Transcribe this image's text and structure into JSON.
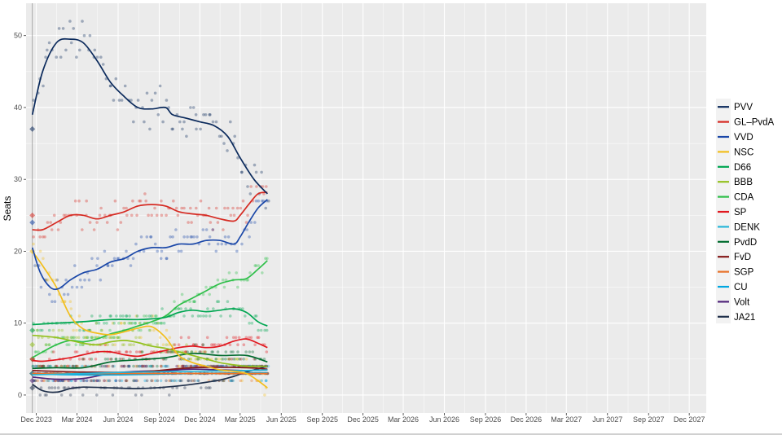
{
  "chart_data": {
    "type": "line",
    "title": "",
    "xlabel": "",
    "ylabel": "Seats",
    "ylim": [
      -2.5,
      54.5
    ],
    "xlim": [
      "2023-11-08",
      "2028-01-08"
    ],
    "y_ticks": [
      0,
      10,
      20,
      30,
      40,
      50
    ],
    "x_ticks": [
      {
        "date": "2023-12-01",
        "label": "Dec 2023"
      },
      {
        "date": "2024-03-01",
        "label": "Mar 2024"
      },
      {
        "date": "2024-06-01",
        "label": "Jun 2024"
      },
      {
        "date": "2024-09-01",
        "label": "Sep 2024"
      },
      {
        "date": "2024-12-01",
        "label": "Dec 2024"
      },
      {
        "date": "2025-03-01",
        "label": "Mar 2025"
      },
      {
        "date": "2025-06-01",
        "label": "Jun 2025"
      },
      {
        "date": "2025-09-01",
        "label": "Sep 2025"
      },
      {
        "date": "2025-12-01",
        "label": "Dec 2025"
      },
      {
        "date": "2026-03-01",
        "label": "Mar 2026"
      },
      {
        "date": "2026-06-01",
        "label": "Jun 2026"
      },
      {
        "date": "2026-09-01",
        "label": "Sep 2026"
      },
      {
        "date": "2026-12-01",
        "label": "Dec 2026"
      },
      {
        "date": "2027-03-01",
        "label": "Mar 2027"
      },
      {
        "date": "2027-06-01",
        "label": "Jun 2027"
      },
      {
        "date": "2027-09-01",
        "label": "Sep 2027"
      },
      {
        "date": "2027-12-01",
        "label": "Dec 2027"
      }
    ],
    "election_date": "2023-11-22",
    "grid": true,
    "background": "#ebebeb",
    "legend_position": "right",
    "series": [
      {
        "name": "PVV",
        "color": "#0b2a5c",
        "election": 37,
        "trend": [
          [
            "2023-11-22",
            39
          ],
          [
            "2023-12-15",
            45
          ],
          [
            "2024-01-15",
            49
          ],
          [
            "2024-02-15",
            49.5
          ],
          [
            "2024-03-15",
            49
          ],
          [
            "2024-04-15",
            46.5
          ],
          [
            "2024-05-15",
            43.5
          ],
          [
            "2024-06-15",
            41.5
          ],
          [
            "2024-07-15",
            40
          ],
          [
            "2024-08-15",
            39.8
          ],
          [
            "2024-09-15",
            40
          ],
          [
            "2024-10-01",
            39
          ],
          [
            "2024-11-01",
            38.5
          ],
          [
            "2024-12-01",
            38
          ],
          [
            "2025-01-01",
            37.5
          ],
          [
            "2025-02-01",
            36
          ],
          [
            "2025-03-01",
            33
          ],
          [
            "2025-04-01",
            30
          ],
          [
            "2025-05-01",
            28
          ]
        ]
      },
      {
        "name": "GL–PvdA",
        "color": "#d62b23",
        "election": 25,
        "trend": [
          [
            "2023-11-22",
            23
          ],
          [
            "2023-12-15",
            23
          ],
          [
            "2024-01-15",
            24
          ],
          [
            "2024-02-15",
            25
          ],
          [
            "2024-03-15",
            25
          ],
          [
            "2024-04-15",
            24.5
          ],
          [
            "2024-05-15",
            25
          ],
          [
            "2024-06-15",
            25.5
          ],
          [
            "2024-07-15",
            26.3
          ],
          [
            "2024-08-15",
            26.5
          ],
          [
            "2024-09-15",
            26.3
          ],
          [
            "2024-10-15",
            25.5
          ],
          [
            "2024-11-15",
            25.2
          ],
          [
            "2024-12-15",
            25
          ],
          [
            "2025-01-15",
            24.5
          ],
          [
            "2025-02-15",
            24.2
          ],
          [
            "2025-03-01",
            25
          ],
          [
            "2025-03-20",
            26.5
          ],
          [
            "2025-04-10",
            28
          ],
          [
            "2025-05-01",
            28.2
          ]
        ]
      },
      {
        "name": "VVD",
        "color": "#1a47a8",
        "election": 24,
        "trend": [
          [
            "2023-11-22",
            20.5
          ],
          [
            "2023-12-10",
            17
          ],
          [
            "2024-01-01",
            15
          ],
          [
            "2024-01-20",
            14.8
          ],
          [
            "2024-02-15",
            16
          ],
          [
            "2024-03-15",
            17
          ],
          [
            "2024-04-15",
            17.5
          ],
          [
            "2024-05-15",
            18.5
          ],
          [
            "2024-06-15",
            19
          ],
          [
            "2024-07-15",
            20
          ],
          [
            "2024-08-15",
            20.5
          ],
          [
            "2024-09-15",
            20.5
          ],
          [
            "2024-10-15",
            21
          ],
          [
            "2024-11-15",
            21
          ],
          [
            "2024-12-15",
            21.5
          ],
          [
            "2025-01-15",
            21.5
          ],
          [
            "2025-02-15",
            21
          ],
          [
            "2025-03-01",
            22
          ],
          [
            "2025-03-20",
            24
          ],
          [
            "2025-04-10",
            26
          ],
          [
            "2025-05-01",
            27.2
          ]
        ]
      },
      {
        "name": "NSC",
        "color": "#f2be1c",
        "election": 20,
        "trend": [
          [
            "2023-11-22",
            20
          ],
          [
            "2023-12-15",
            18
          ],
          [
            "2024-01-15",
            15
          ],
          [
            "2024-02-15",
            11
          ],
          [
            "2024-03-15",
            9.2
          ],
          [
            "2024-04-15",
            8.6
          ],
          [
            "2024-05-15",
            8.4
          ],
          [
            "2024-06-15",
            8.8
          ],
          [
            "2024-07-15",
            9.3
          ],
          [
            "2024-08-15",
            9.5
          ],
          [
            "2024-09-15",
            8
          ],
          [
            "2024-10-15",
            5.5
          ],
          [
            "2024-11-15",
            4.5
          ],
          [
            "2024-12-15",
            4
          ],
          [
            "2025-01-15",
            3.5
          ],
          [
            "2025-02-15",
            3.3
          ],
          [
            "2025-03-15",
            3
          ],
          [
            "2025-04-10",
            2
          ],
          [
            "2025-05-01",
            1
          ]
        ]
      },
      {
        "name": "D66",
        "color": "#00a651",
        "election": 9,
        "trend": [
          [
            "2023-11-22",
            9.8
          ],
          [
            "2024-01-15",
            10
          ],
          [
            "2024-03-15",
            10.2
          ],
          [
            "2024-05-15",
            10.5
          ],
          [
            "2024-07-15",
            10.5
          ],
          [
            "2024-08-15",
            10.6
          ],
          [
            "2024-09-15",
            10.8
          ],
          [
            "2024-10-15",
            11.5
          ],
          [
            "2024-11-15",
            11.8
          ],
          [
            "2024-12-15",
            11.6
          ],
          [
            "2025-01-15",
            11.8
          ],
          [
            "2025-02-15",
            12
          ],
          [
            "2025-03-15",
            11.5
          ],
          [
            "2025-04-10",
            10.2
          ],
          [
            "2025-05-01",
            9.6
          ]
        ]
      },
      {
        "name": "BBB",
        "color": "#94c11f",
        "election": 7,
        "trend": [
          [
            "2023-11-22",
            8.3
          ],
          [
            "2023-12-15",
            8.2
          ],
          [
            "2024-01-15",
            8
          ],
          [
            "2024-02-15",
            7.6
          ],
          [
            "2024-03-15",
            7.2
          ],
          [
            "2024-04-15",
            7
          ],
          [
            "2024-05-15",
            7.4
          ],
          [
            "2024-06-15",
            7.6
          ],
          [
            "2024-07-15",
            7.3
          ],
          [
            "2024-08-15",
            6.8
          ],
          [
            "2024-09-15",
            6.5
          ],
          [
            "2024-10-15",
            6
          ],
          [
            "2024-11-15",
            5.5
          ],
          [
            "2024-12-15",
            5
          ],
          [
            "2025-01-15",
            4.5
          ],
          [
            "2025-02-15",
            4.2
          ],
          [
            "2025-03-15",
            4
          ],
          [
            "2025-04-10",
            4
          ],
          [
            "2025-05-01",
            4
          ]
        ]
      },
      {
        "name": "CDA",
        "color": "#2fbf4a",
        "election": 5,
        "trend": [
          [
            "2023-11-22",
            5.2
          ],
          [
            "2023-12-15",
            6
          ],
          [
            "2024-01-15",
            7
          ],
          [
            "2024-02-15",
            7.6
          ],
          [
            "2024-03-15",
            7.4
          ],
          [
            "2024-04-15",
            7.8
          ],
          [
            "2024-05-15",
            8.5
          ],
          [
            "2024-06-15",
            9
          ],
          [
            "2024-07-15",
            9.6
          ],
          [
            "2024-08-15",
            10.2
          ],
          [
            "2024-09-15",
            11
          ],
          [
            "2024-10-15",
            12.5
          ],
          [
            "2024-11-15",
            13.5
          ],
          [
            "2024-12-15",
            14.5
          ],
          [
            "2025-01-15",
            15.5
          ],
          [
            "2025-02-15",
            16
          ],
          [
            "2025-03-15",
            16.2
          ],
          [
            "2025-04-10",
            17.5
          ],
          [
            "2025-05-01",
            18.7
          ]
        ]
      },
      {
        "name": "SP",
        "color": "#e1171e",
        "election": 5,
        "trend": [
          [
            "2023-11-22",
            4.8
          ],
          [
            "2023-12-15",
            4.7
          ],
          [
            "2024-01-15",
            4.9
          ],
          [
            "2024-02-15",
            5.2
          ],
          [
            "2024-03-15",
            5.6
          ],
          [
            "2024-04-15",
            6
          ],
          [
            "2024-05-15",
            6
          ],
          [
            "2024-06-15",
            5.6
          ],
          [
            "2024-07-15",
            5.4
          ],
          [
            "2024-08-15",
            5.8
          ],
          [
            "2024-09-15",
            6.2
          ],
          [
            "2024-10-15",
            6.6
          ],
          [
            "2024-11-15",
            6.8
          ],
          [
            "2024-12-15",
            6.6
          ],
          [
            "2025-01-15",
            6.8
          ],
          [
            "2025-02-15",
            7.5
          ],
          [
            "2025-03-15",
            7.8
          ],
          [
            "2025-04-10",
            7.2
          ],
          [
            "2025-05-01",
            6.6
          ]
        ]
      },
      {
        "name": "DENK",
        "color": "#27b6d8",
        "election": 3,
        "trend": [
          [
            "2023-11-22",
            2.8
          ],
          [
            "2024-03-15",
            3
          ],
          [
            "2024-07-15",
            3.2
          ],
          [
            "2024-11-15",
            3.3
          ],
          [
            "2025-03-15",
            3.4
          ],
          [
            "2025-05-01",
            3.5
          ]
        ]
      },
      {
        "name": "PvdD",
        "color": "#006b2e",
        "election": 3,
        "trend": [
          [
            "2023-11-22",
            3.7
          ],
          [
            "2024-01-15",
            3.8
          ],
          [
            "2024-03-15",
            3.8
          ],
          [
            "2024-05-15",
            4.6
          ],
          [
            "2024-07-15",
            4.9
          ],
          [
            "2024-09-15",
            5.2
          ],
          [
            "2024-11-15",
            5.8
          ],
          [
            "2025-01-15",
            5.5
          ],
          [
            "2025-03-15",
            5.5
          ],
          [
            "2025-05-01",
            4.6
          ]
        ]
      },
      {
        "name": "FvD",
        "color": "#841818",
        "election": 3,
        "trend": [
          [
            "2023-11-22",
            3.4
          ],
          [
            "2024-03-15",
            3.2
          ],
          [
            "2024-07-15",
            3.2
          ],
          [
            "2024-11-15",
            3.8
          ],
          [
            "2025-03-15",
            3.8
          ],
          [
            "2025-05-01",
            3.6
          ]
        ]
      },
      {
        "name": "SGP",
        "color": "#e8722a",
        "election": 3,
        "trend": [
          [
            "2023-11-22",
            3
          ],
          [
            "2024-05-15",
            3
          ],
          [
            "2024-11-15",
            3
          ],
          [
            "2025-05-01",
            3
          ]
        ]
      },
      {
        "name": "CU",
        "color": "#00a7e1",
        "election": 3,
        "trend": [
          [
            "2023-11-22",
            2.9
          ],
          [
            "2024-05-15",
            2.8
          ],
          [
            "2024-11-15",
            3
          ],
          [
            "2025-05-01",
            3.1
          ]
        ]
      },
      {
        "name": "Volt",
        "color": "#502379",
        "election": 2,
        "trend": [
          [
            "2023-11-22",
            2.5
          ],
          [
            "2024-01-15",
            2.2
          ],
          [
            "2024-03-15",
            2.3
          ],
          [
            "2024-05-15",
            3
          ],
          [
            "2024-07-15",
            3.3
          ],
          [
            "2024-09-15",
            3.4
          ],
          [
            "2024-11-15",
            3.6
          ],
          [
            "2025-01-15",
            3.5
          ],
          [
            "2025-03-15",
            3.4
          ],
          [
            "2025-05-01",
            3.5
          ]
        ]
      },
      {
        "name": "JA21",
        "color": "#1f2f4a",
        "election": 1,
        "trend": [
          [
            "2023-11-22",
            1.5
          ],
          [
            "2023-12-15",
            0.6
          ],
          [
            "2024-01-15",
            0.4
          ],
          [
            "2024-02-15",
            0.9
          ],
          [
            "2024-03-15",
            1.1
          ],
          [
            "2024-05-15",
            1
          ],
          [
            "2024-07-15",
            0.9
          ],
          [
            "2024-09-15",
            1.1
          ],
          [
            "2024-11-15",
            1.5
          ],
          [
            "2025-01-15",
            2.1
          ],
          [
            "2025-02-15",
            2.6
          ],
          [
            "2025-03-15",
            3.2
          ],
          [
            "2025-05-01",
            4
          ]
        ]
      }
    ]
  }
}
